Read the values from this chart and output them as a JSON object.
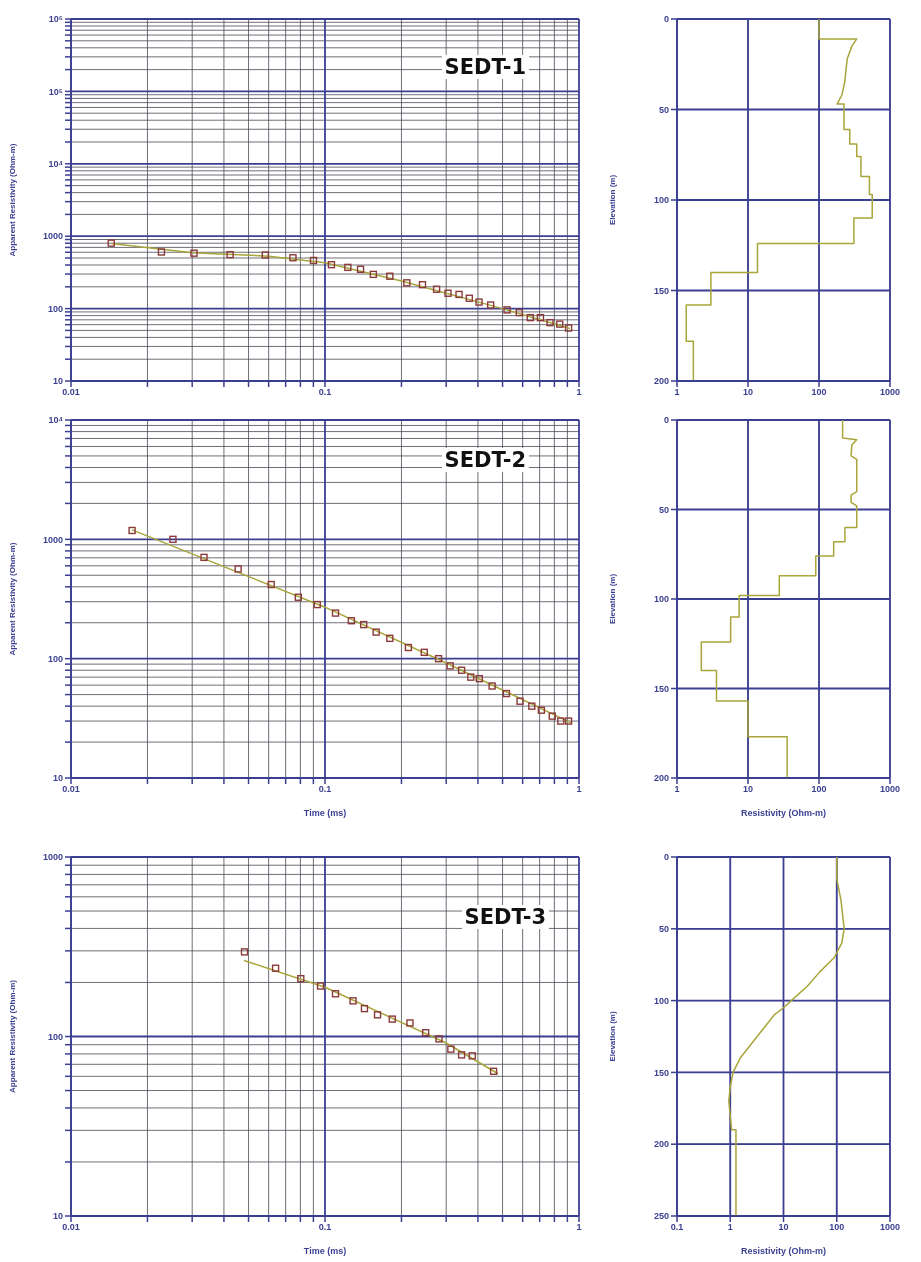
{
  "chart_data": [
    {
      "type": "scatter",
      "title": "SEDT-1",
      "ylabel": "Apparent Resistivity (Ohm-m)",
      "log": "xy",
      "grid": true,
      "xlim": [
        0.01,
        1
      ],
      "ylim": [
        10,
        1000000
      ],
      "xticks": [
        0.01,
        {
          "value": 0.02,
          "label": null
        },
        {
          "value": 0.03,
          "label": null
        },
        {
          "value": 0.04,
          "label": null
        },
        {
          "value": 0.05,
          "label": null
        },
        {
          "value": 0.06,
          "label": null
        },
        {
          "value": 0.07,
          "label": null
        },
        {
          "value": 0.08,
          "label": null
        },
        {
          "value": 0.09,
          "label": null
        },
        0.1,
        {
          "value": 0.2,
          "label": null
        },
        {
          "value": 0.3,
          "label": null
        },
        {
          "value": 0.4,
          "label": null
        },
        {
          "value": 0.5,
          "label": null
        },
        {
          "value": 0.6,
          "label": null
        },
        {
          "value": 0.7,
          "label": null
        },
        {
          "value": 0.8,
          "label": null
        },
        {
          "value": 0.9,
          "label": null
        },
        1
      ],
      "yticks": [
        10,
        {
          "value": 20,
          "label": null
        },
        {
          "value": 30,
          "label": null
        },
        {
          "value": 40,
          "label": null
        },
        {
          "value": 50,
          "label": null
        },
        {
          "value": 60,
          "label": null
        },
        {
          "value": 70,
          "label": null
        },
        {
          "value": 80,
          "label": null
        },
        {
          "value": 90,
          "label": null
        },
        100,
        {
          "value": 200,
          "label": null
        },
        {
          "value": 300,
          "label": null
        },
        {
          "value": 400,
          "label": null
        },
        {
          "value": 500,
          "label": null
        },
        {
          "value": 600,
          "label": null
        },
        {
          "value": 700,
          "label": null
        },
        {
          "value": 800,
          "label": null
        },
        {
          "value": 900,
          "label": null
        },
        1000,
        {
          "value": 2000,
          "label": null
        },
        {
          "value": 3000,
          "label": null
        },
        {
          "value": 4000,
          "label": null
        },
        {
          "value": 5000,
          "label": null
        },
        {
          "value": 6000,
          "label": null
        },
        {
          "value": 7000,
          "label": null
        },
        {
          "value": 8000,
          "label": null
        },
        {
          "value": 9000,
          "label": null
        },
        {
          "value": 10000,
          "label": "10⁴"
        },
        {
          "value": 20000,
          "label": null
        },
        {
          "value": 30000,
          "label": null
        },
        {
          "value": 40000,
          "label": null
        },
        {
          "value": 50000,
          "label": null
        },
        {
          "value": 60000,
          "label": null
        },
        {
          "value": 70000,
          "label": null
        },
        {
          "value": 80000,
          "label": null
        },
        {
          "value": 90000,
          "label": null
        },
        {
          "value": 100000,
          "label": "10⁵"
        },
        {
          "value": 200000,
          "label": null
        },
        {
          "value": 300000,
          "label": null
        },
        {
          "value": 400000,
          "label": null
        },
        {
          "value": 500000,
          "label": null
        },
        {
          "value": 600000,
          "label": null
        },
        {
          "value": 700000,
          "label": null
        },
        {
          "value": 800000,
          "label": null
        },
        {
          "value": 900000,
          "label": null
        },
        {
          "value": 1000000,
          "label": "10⁶"
        }
      ],
      "series": [
        {
          "type": "line",
          "color": "#a9a53a",
          "x": [
            0.0144,
            0.03,
            0.06,
            0.1,
            0.2,
            0.5,
            0.92
          ],
          "values": [
            790,
            590,
            530,
            430,
            240,
            100,
            53
          ]
        },
        {
          "marker": "square",
          "color": "#8b3a3a",
          "x": [
            0.0144,
            0.0227,
            0.0305,
            0.0423,
            0.0582,
            0.0748,
            0.0901,
            0.106,
            0.123,
            0.138,
            0.155,
            0.18,
            0.21,
            0.242,
            0.275,
            0.305,
            0.337,
            0.37,
            0.404,
            0.449,
            0.521,
            0.582,
            0.643,
            0.705,
            0.769,
            0.84,
            0.91
          ],
          "values": [
            802,
            605,
            583,
            556,
            550,
            504,
            462,
            404,
            371,
            349,
            297,
            280,
            227,
            214,
            185,
            163,
            157,
            139,
            123,
            112,
            96,
            88,
            75,
            75,
            64,
            61,
            54
          ]
        }
      ]
    },
    {
      "type": "line",
      "ylabel": "Elevation (m)",
      "log": "x",
      "grid": true,
      "xlim": [
        1,
        1000
      ],
      "ylim": [
        200,
        0
      ],
      "xticks": [
        1,
        10,
        100,
        1000
      ],
      "yticks": [
        0,
        50,
        100,
        150,
        200
      ],
      "series": [
        {
          "color": "#a9a53a",
          "x": [
            100,
            100,
            340,
            290,
            250,
            240,
            230,
            210,
            180,
            180,
            225,
            225,
            271,
            271,
            340,
            340,
            390,
            390,
            513,
            513,
            562,
            562,
            310,
            310,
            13.6,
            13.6,
            3.0,
            3.0,
            1.35,
            1.35,
            1.7,
            1.7
          ],
          "values": [
            0,
            11,
            11,
            15,
            22,
            28,
            35,
            42,
            47,
            47,
            47,
            61,
            61,
            69,
            69,
            76,
            76,
            87,
            87,
            97,
            97,
            110,
            110,
            124,
            124,
            140,
            140,
            158,
            158,
            178,
            178,
            200
          ]
        }
      ]
    },
    {
      "type": "scatter",
      "title": "SEDT-2",
      "xlabel": "Time (ms)",
      "ylabel": "Apparent Resistivity (Ohm-m)",
      "log": "xy",
      "grid": true,
      "xlim": [
        0.01,
        1
      ],
      "ylim": [
        10,
        10000
      ],
      "xticks": [
        0.01,
        {
          "value": 0.02,
          "label": null
        },
        {
          "value": 0.03,
          "label": null
        },
        {
          "value": 0.04,
          "label": null
        },
        {
          "value": 0.05,
          "label": null
        },
        {
          "value": 0.06,
          "label": null
        },
        {
          "value": 0.07,
          "label": null
        },
        {
          "value": 0.08,
          "label": null
        },
        {
          "value": 0.09,
          "label": null
        },
        0.1,
        {
          "value": 0.2,
          "label": null
        },
        {
          "value": 0.3,
          "label": null
        },
        {
          "value": 0.4,
          "label": null
        },
        {
          "value": 0.5,
          "label": null
        },
        {
          "value": 0.6,
          "label": null
        },
        {
          "value": 0.7,
          "label": null
        },
        {
          "value": 0.8,
          "label": null
        },
        {
          "value": 0.9,
          "label": null
        },
        1
      ],
      "yticks": [
        10,
        {
          "value": 20,
          "label": null
        },
        {
          "value": 30,
          "label": null
        },
        {
          "value": 40,
          "label": null
        },
        {
          "value": 50,
          "label": null
        },
        {
          "value": 60,
          "label": null
        },
        {
          "value": 70,
          "label": null
        },
        {
          "value": 80,
          "label": null
        },
        {
          "value": 90,
          "label": null
        },
        100,
        {
          "value": 200,
          "label": null
        },
        {
          "value": 300,
          "label": null
        },
        {
          "value": 400,
          "label": null
        },
        {
          "value": 500,
          "label": null
        },
        {
          "value": 600,
          "label": null
        },
        {
          "value": 700,
          "label": null
        },
        {
          "value": 800,
          "label": null
        },
        {
          "value": 900,
          "label": null
        },
        1000,
        {
          "value": 2000,
          "label": null
        },
        {
          "value": 3000,
          "label": null
        },
        {
          "value": 4000,
          "label": null
        },
        {
          "value": 5000,
          "label": null
        },
        {
          "value": 6000,
          "label": null
        },
        {
          "value": 7000,
          "label": null
        },
        {
          "value": 8000,
          "label": null
        },
        {
          "value": 9000,
          "label": null
        },
        {
          "value": 10000,
          "label": "10⁴"
        }
      ],
      "series": [
        {
          "type": "line",
          "color": "#a9a53a",
          "x": [
            0.0174,
            0.1,
            0.3,
            0.93
          ],
          "values": [
            1200,
            270,
            92,
            29
          ]
        },
        {
          "marker": "square",
          "color": "#8b3a3a",
          "x": [
            0.0174,
            0.0252,
            0.0334,
            0.0455,
            0.0614,
            0.0785,
            0.0932,
            0.11,
            0.127,
            0.142,
            0.159,
            0.18,
            0.213,
            0.246,
            0.28,
            0.311,
            0.345,
            0.375,
            0.405,
            0.455,
            0.518,
            0.586,
            0.652,
            0.711,
            0.785,
            0.848,
            0.91
          ],
          "values": [
            1186,
            1000,
            706,
            565,
            418,
            327,
            284,
            241,
            208,
            193,
            167,
            148,
            124,
            113,
            100,
            87,
            80,
            70,
            68,
            59,
            51,
            44,
            40,
            37,
            33,
            30,
            30
          ]
        }
      ]
    },
    {
      "type": "line",
      "xlabel": "Resistivity (Ohm-m)",
      "ylabel": "Elevation (m)",
      "log": "x",
      "grid": true,
      "xlim": [
        1,
        1000
      ],
      "ylim": [
        200,
        0
      ],
      "xticks": [
        1,
        10,
        100,
        1000
      ],
      "yticks": [
        0,
        50,
        100,
        150,
        200
      ],
      "series": [
        {
          "color": "#a9a53a",
          "x": [
            215,
            215,
            340,
            290,
            283,
            340,
            340,
            283,
            283,
            340,
            340,
            232,
            232,
            161,
            161,
            90,
            90,
            27.6,
            27.6,
            7.5,
            7.5,
            5.7,
            5.7,
            2.2,
            2.2,
            3.6,
            3.6,
            10,
            10,
            35.6,
            35.6
          ],
          "values": [
            0,
            10,
            11,
            14,
            20,
            22,
            40,
            42,
            46,
            48,
            60,
            60,
            68,
            68,
            76,
            76,
            87,
            87,
            98,
            98,
            110,
            110,
            124,
            124,
            140,
            140,
            157,
            157,
            177,
            177,
            200
          ]
        }
      ]
    },
    {
      "type": "scatter",
      "title": "SEDT-3",
      "xlabel": "Time (ms)",
      "ylabel": "Apparent Resistivity (Ohm-m)",
      "log": "xy",
      "grid": true,
      "xlim": [
        0.01,
        1
      ],
      "ylim": [
        10,
        1000
      ],
      "xticks": [
        0.01,
        {
          "value": 0.02,
          "label": null
        },
        {
          "value": 0.03,
          "label": null
        },
        {
          "value": 0.04,
          "label": null
        },
        {
          "value": 0.05,
          "label": null
        },
        {
          "value": 0.06,
          "label": null
        },
        {
          "value": 0.07,
          "label": null
        },
        {
          "value": 0.08,
          "label": null
        },
        {
          "value": 0.09,
          "label": null
        },
        0.1,
        {
          "value": 0.2,
          "label": null
        },
        {
          "value": 0.3,
          "label": null
        },
        {
          "value": 0.4,
          "label": null
        },
        {
          "value": 0.5,
          "label": null
        },
        {
          "value": 0.6,
          "label": null
        },
        {
          "value": 0.7,
          "label": null
        },
        {
          "value": 0.8,
          "label": null
        },
        {
          "value": 0.9,
          "label": null
        },
        1
      ],
      "yticks": [
        10,
        {
          "value": 20,
          "label": null
        },
        {
          "value": 30,
          "label": null
        },
        {
          "value": 40,
          "label": null
        },
        {
          "value": 50,
          "label": null
        },
        {
          "value": 60,
          "label": null
        },
        {
          "value": 70,
          "label": null
        },
        {
          "value": 80,
          "label": null
        },
        {
          "value": 90,
          "label": null
        },
        100,
        {
          "value": 200,
          "label": null
        },
        {
          "value": 300,
          "label": null
        },
        {
          "value": 400,
          "label": null
        },
        {
          "value": 500,
          "label": null
        },
        {
          "value": 600,
          "label": null
        },
        {
          "value": 700,
          "label": null
        },
        {
          "value": 800,
          "label": null
        },
        {
          "value": 900,
          "label": null
        },
        1000
      ],
      "series": [
        {
          "type": "line",
          "color": "#a9a53a",
          "x": [
            0.048,
            0.1,
            0.3,
            0.48
          ],
          "values": [
            265,
            188,
            92,
            62
          ]
        },
        {
          "marker": "square",
          "color": "#8b3a3a",
          "x": [
            0.0482,
            0.0639,
            0.0803,
            0.096,
            0.11,
            0.129,
            0.143,
            0.161,
            0.184,
            0.216,
            0.249,
            0.281,
            0.313,
            0.345,
            0.38,
            0.461
          ],
          "values": [
            296,
            240,
            210,
            191,
            173,
            158,
            143,
            132,
            125,
            119,
            105,
            97,
            85,
            79,
            78,
            64
          ]
        }
      ]
    },
    {
      "type": "line",
      "xlabel": "Resistivity (Ohm-m)",
      "ylabel": "Elevation (m)",
      "log": "x",
      "grid": true,
      "xlim": [
        0.1,
        1000
      ],
      "ylim": [
        250,
        0
      ],
      "xticks": [
        0.1,
        1,
        10,
        100,
        1000
      ],
      "yticks": [
        0,
        50,
        100,
        150,
        200,
        250
      ],
      "series": [
        {
          "color": "#a9a53a",
          "x": [
            100,
            100,
            120,
            138,
            124,
            90,
            48,
            28,
            14,
            10,
            6.7,
            4.1,
            2.5,
            1.54,
            1.13,
            1.0,
            0.94,
            1.0,
            1.06,
            1.28,
            1.28
          ],
          "values": [
            0,
            15,
            30,
            50,
            60,
            70,
            80,
            90,
            100,
            105,
            110,
            120,
            130,
            140,
            150,
            160,
            170,
            180,
            190,
            190,
            250
          ]
        }
      ]
    }
  ]
}
